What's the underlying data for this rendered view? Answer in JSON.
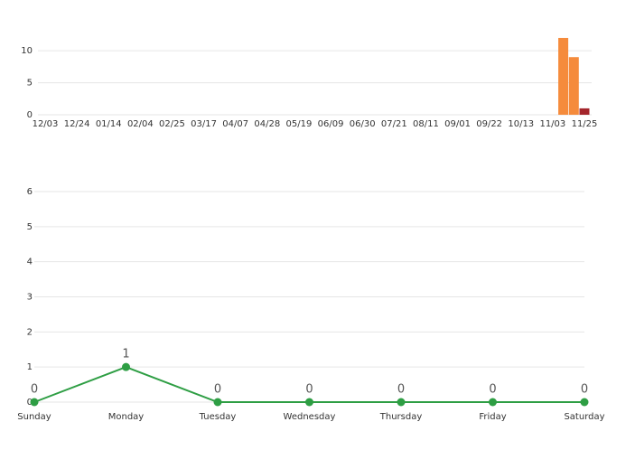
{
  "chart_data": [
    {
      "type": "bar",
      "categories": [
        "12/03",
        null,
        null,
        "12/24",
        null,
        null,
        "01/14",
        null,
        null,
        "02/04",
        null,
        null,
        "02/25",
        null,
        null,
        "03/17",
        null,
        null,
        "04/07",
        null,
        null,
        "04/28",
        null,
        null,
        "05/19",
        null,
        null,
        "06/09",
        null,
        null,
        "06/30",
        null,
        null,
        "07/21",
        null,
        null,
        "08/11",
        null,
        null,
        "09/01",
        null,
        null,
        "09/22",
        null,
        null,
        "10/13",
        null,
        null,
        "11/03",
        null,
        null,
        "11/25"
      ],
      "values": [
        null,
        null,
        null,
        null,
        null,
        null,
        null,
        null,
        null,
        null,
        null,
        null,
        null,
        null,
        null,
        null,
        null,
        null,
        null,
        null,
        null,
        null,
        null,
        null,
        null,
        null,
        null,
        null,
        null,
        null,
        null,
        null,
        null,
        null,
        null,
        null,
        null,
        null,
        null,
        null,
        null,
        null,
        null,
        null,
        null,
        null,
        null,
        null,
        null,
        12,
        9,
        1
      ],
      "color": "#f58b3c",
      "last_color": "#a4262c",
      "ylim": [
        0,
        12.7
      ],
      "yticks": [
        0,
        5,
        10
      ],
      "grid": true
    },
    {
      "type": "line",
      "categories": [
        "Sunday",
        "Monday",
        "Tuesday",
        "Wednesday",
        "Thursday",
        "Friday",
        "Saturday"
      ],
      "values": [
        0,
        1,
        0,
        0,
        0,
        0,
        0
      ],
      "color": "#2e9e44",
      "ylim": [
        0,
        6
      ],
      "yticks": [
        0,
        1,
        2,
        3,
        4,
        5,
        6
      ],
      "grid": true
    }
  ]
}
